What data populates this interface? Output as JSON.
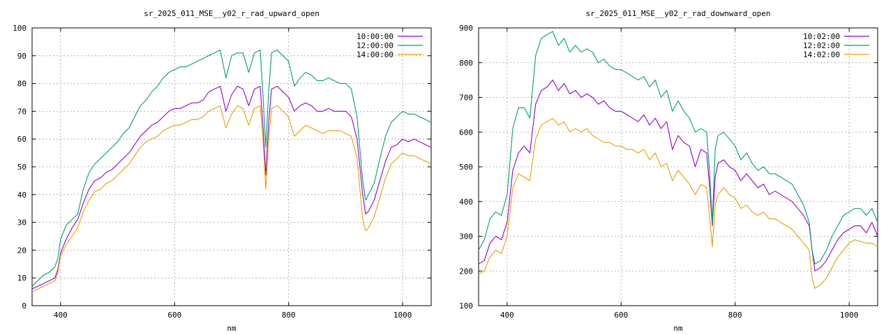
{
  "chart_data": [
    {
      "type": "line",
      "title": "sr_2025_011_MSE__y02_r_rad_upward_open",
      "xlabel": "nm",
      "ylabel": "",
      "xlim": [
        350,
        1050
      ],
      "ylim": [
        0,
        100
      ],
      "xticks": [
        400,
        600,
        800,
        1000
      ],
      "yticks": [
        0,
        10,
        20,
        30,
        40,
        50,
        60,
        70,
        80,
        90,
        100
      ],
      "grid": true,
      "legend_position": "top-right",
      "series": [
        {
          "name": "10:00:00",
          "color": "#9400d3",
          "x": [
            350,
            360,
            370,
            380,
            390,
            395,
            400,
            410,
            420,
            430,
            440,
            450,
            460,
            470,
            480,
            490,
            500,
            510,
            520,
            530,
            540,
            550,
            560,
            570,
            580,
            590,
            600,
            610,
            620,
            630,
            640,
            650,
            660,
            670,
            680,
            690,
            700,
            710,
            720,
            730,
            740,
            750,
            755,
            760,
            765,
            770,
            780,
            790,
            800,
            810,
            820,
            830,
            840,
            850,
            860,
            870,
            880,
            890,
            900,
            910,
            920,
            930,
            935,
            940,
            950,
            960,
            970,
            980,
            990,
            1000,
            1010,
            1020,
            1030,
            1040,
            1050
          ],
          "y": [
            6,
            7,
            8,
            9,
            10,
            13,
            19,
            24,
            28,
            31,
            37,
            42,
            45,
            46,
            48,
            49,
            51,
            53,
            55,
            58,
            61,
            63,
            65,
            66,
            68,
            70,
            71,
            71,
            72,
            73,
            73,
            74,
            77,
            78,
            79,
            70,
            76,
            79,
            78,
            72,
            78,
            79,
            65,
            47,
            66,
            78,
            79,
            77,
            75,
            70,
            72,
            73,
            72,
            70,
            70,
            71,
            70,
            70,
            70,
            68,
            60,
            40,
            33,
            34,
            38,
            45,
            52,
            57,
            58,
            60,
            59,
            60,
            59,
            58,
            57
          ],
          "print_value": "10:00:00"
        },
        {
          "name": "12:00:00",
          "color": "#009e73",
          "x": [
            350,
            360,
            370,
            380,
            390,
            395,
            400,
            410,
            420,
            430,
            440,
            450,
            460,
            470,
            480,
            490,
            500,
            510,
            520,
            530,
            540,
            550,
            560,
            570,
            580,
            590,
            600,
            610,
            620,
            630,
            640,
            650,
            660,
            670,
            680,
            690,
            700,
            710,
            720,
            730,
            740,
            750,
            755,
            760,
            765,
            770,
            780,
            790,
            800,
            810,
            820,
            830,
            840,
            850,
            860,
            870,
            880,
            890,
            900,
            910,
            920,
            930,
            935,
            940,
            950,
            960,
            970,
            980,
            990,
            1000,
            1010,
            1020,
            1030,
            1040,
            1050
          ],
          "y": [
            7,
            9,
            11,
            12,
            14,
            17,
            24,
            29,
            31,
            33,
            42,
            48,
            51,
            53,
            55,
            57,
            59,
            62,
            64,
            68,
            72,
            74,
            77,
            79,
            82,
            84,
            85,
            86,
            86,
            87,
            88,
            89,
            90,
            91,
            92,
            82,
            90,
            91,
            91,
            84,
            91,
            92,
            76,
            57,
            77,
            91,
            92,
            90,
            88,
            79,
            82,
            84,
            83,
            81,
            81,
            82,
            81,
            80,
            80,
            78,
            68,
            45,
            38,
            40,
            44,
            53,
            61,
            66,
            68,
            70,
            69,
            69,
            68,
            67,
            66
          ]
        },
        {
          "name": "14:00:00",
          "color": "#e69f00",
          "x": [
            350,
            360,
            370,
            380,
            390,
            395,
            400,
            410,
            420,
            430,
            440,
            450,
            460,
            470,
            480,
            490,
            500,
            510,
            520,
            530,
            540,
            550,
            560,
            570,
            580,
            590,
            600,
            610,
            620,
            630,
            640,
            650,
            660,
            670,
            680,
            690,
            700,
            710,
            720,
            730,
            740,
            750,
            755,
            760,
            765,
            770,
            780,
            790,
            800,
            810,
            820,
            830,
            840,
            850,
            860,
            870,
            880,
            890,
            900,
            910,
            920,
            930,
            935,
            940,
            950,
            960,
            970,
            980,
            990,
            1000,
            1010,
            1020,
            1030,
            1040,
            1050
          ],
          "y": [
            5,
            6,
            7,
            8,
            9,
            12,
            18,
            22,
            25,
            28,
            34,
            38,
            41,
            42,
            44,
            45,
            47,
            49,
            51,
            54,
            57,
            59,
            60,
            61,
            63,
            64,
            65,
            65,
            66,
            67,
            67,
            68,
            70,
            71,
            72,
            64,
            69,
            72,
            71,
            65,
            71,
            72,
            60,
            42,
            60,
            71,
            72,
            70,
            68,
            61,
            63,
            65,
            64,
            63,
            62,
            63,
            63,
            63,
            62,
            61,
            53,
            31,
            27,
            28,
            32,
            39,
            46,
            51,
            53,
            55,
            54,
            54,
            53,
            52,
            51
          ]
        }
      ]
    },
    {
      "type": "line",
      "title": "sr_2025_011_MSE__y02_r_rad_downward_open",
      "xlabel": "nm",
      "ylabel": "",
      "xlim": [
        350,
        1050
      ],
      "ylim": [
        100,
        900
      ],
      "xticks": [
        400,
        600,
        800,
        1000
      ],
      "yticks": [
        100,
        200,
        300,
        400,
        500,
        600,
        700,
        800,
        900
      ],
      "grid": true,
      "legend_position": "top-right",
      "series": [
        {
          "name": "10:02:00",
          "color": "#9400d3",
          "x": [
            350,
            360,
            370,
            380,
            390,
            400,
            410,
            420,
            430,
            440,
            450,
            460,
            470,
            480,
            490,
            500,
            510,
            520,
            530,
            540,
            550,
            560,
            570,
            580,
            590,
            600,
            610,
            620,
            630,
            640,
            650,
            660,
            670,
            680,
            690,
            700,
            710,
            720,
            730,
            740,
            750,
            755,
            760,
            765,
            770,
            780,
            790,
            800,
            810,
            820,
            830,
            840,
            850,
            860,
            870,
            880,
            890,
            900,
            910,
            920,
            930,
            935,
            940,
            950,
            960,
            970,
            980,
            990,
            1000,
            1010,
            1020,
            1030,
            1040,
            1050
          ],
          "y": [
            220,
            230,
            280,
            300,
            290,
            340,
            490,
            540,
            560,
            540,
            680,
            720,
            730,
            750,
            720,
            740,
            710,
            720,
            700,
            710,
            700,
            680,
            690,
            670,
            660,
            660,
            650,
            640,
            630,
            650,
            620,
            640,
            610,
            630,
            550,
            590,
            570,
            560,
            500,
            550,
            540,
            450,
            330,
            470,
            510,
            520,
            500,
            490,
            460,
            480,
            460,
            440,
            450,
            420,
            430,
            420,
            410,
            400,
            380,
            360,
            330,
            260,
            200,
            210,
            230,
            260,
            290,
            310,
            320,
            330,
            330,
            310,
            340,
            300
          ]
        },
        {
          "name": "12:02:00",
          "color": "#009e73",
          "x": [
            350,
            360,
            370,
            380,
            390,
            400,
            410,
            420,
            430,
            440,
            450,
            460,
            470,
            480,
            490,
            500,
            510,
            520,
            530,
            540,
            550,
            560,
            570,
            580,
            590,
            600,
            610,
            620,
            630,
            640,
            650,
            660,
            670,
            680,
            690,
            700,
            710,
            720,
            730,
            740,
            750,
            755,
            760,
            765,
            770,
            780,
            790,
            800,
            810,
            820,
            830,
            840,
            850,
            860,
            870,
            880,
            890,
            900,
            910,
            920,
            930,
            935,
            940,
            950,
            960,
            970,
            980,
            990,
            1000,
            1010,
            1020,
            1030,
            1040,
            1050
          ],
          "y": [
            260,
            290,
            350,
            370,
            360,
            420,
            610,
            670,
            670,
            640,
            820,
            870,
            880,
            890,
            850,
            870,
            830,
            850,
            830,
            840,
            830,
            800,
            810,
            790,
            780,
            780,
            770,
            760,
            750,
            760,
            730,
            750,
            700,
            720,
            660,
            690,
            660,
            640,
            600,
            610,
            600,
            490,
            340,
            550,
            590,
            600,
            580,
            560,
            520,
            540,
            510,
            490,
            500,
            480,
            480,
            470,
            460,
            450,
            420,
            390,
            340,
            260,
            220,
            230,
            260,
            300,
            330,
            360,
            370,
            380,
            380,
            360,
            380,
            340
          ]
        },
        {
          "name": "14:02:00",
          "color": "#e69f00",
          "x": [
            350,
            360,
            370,
            380,
            390,
            400,
            410,
            420,
            430,
            440,
            450,
            460,
            470,
            480,
            490,
            500,
            510,
            520,
            530,
            540,
            550,
            560,
            570,
            580,
            590,
            600,
            610,
            620,
            630,
            640,
            650,
            660,
            670,
            680,
            690,
            700,
            710,
            720,
            730,
            740,
            750,
            755,
            760,
            765,
            770,
            780,
            790,
            800,
            810,
            820,
            830,
            840,
            850,
            860,
            870,
            880,
            890,
            900,
            910,
            920,
            930,
            935,
            940,
            950,
            960,
            970,
            980,
            990,
            1000,
            1010,
            1020,
            1030,
            1040,
            1050
          ],
          "y": [
            190,
            200,
            240,
            260,
            250,
            300,
            440,
            480,
            470,
            460,
            580,
            620,
            630,
            640,
            620,
            630,
            600,
            610,
            600,
            610,
            590,
            580,
            570,
            570,
            560,
            560,
            550,
            550,
            540,
            550,
            520,
            540,
            500,
            510,
            460,
            490,
            470,
            450,
            420,
            450,
            440,
            360,
            270,
            390,
            420,
            440,
            420,
            410,
            380,
            390,
            370,
            360,
            370,
            350,
            350,
            340,
            330,
            320,
            300,
            280,
            260,
            180,
            150,
            160,
            180,
            210,
            240,
            260,
            280,
            290,
            285,
            280,
            280,
            270
          ]
        }
      ]
    }
  ]
}
